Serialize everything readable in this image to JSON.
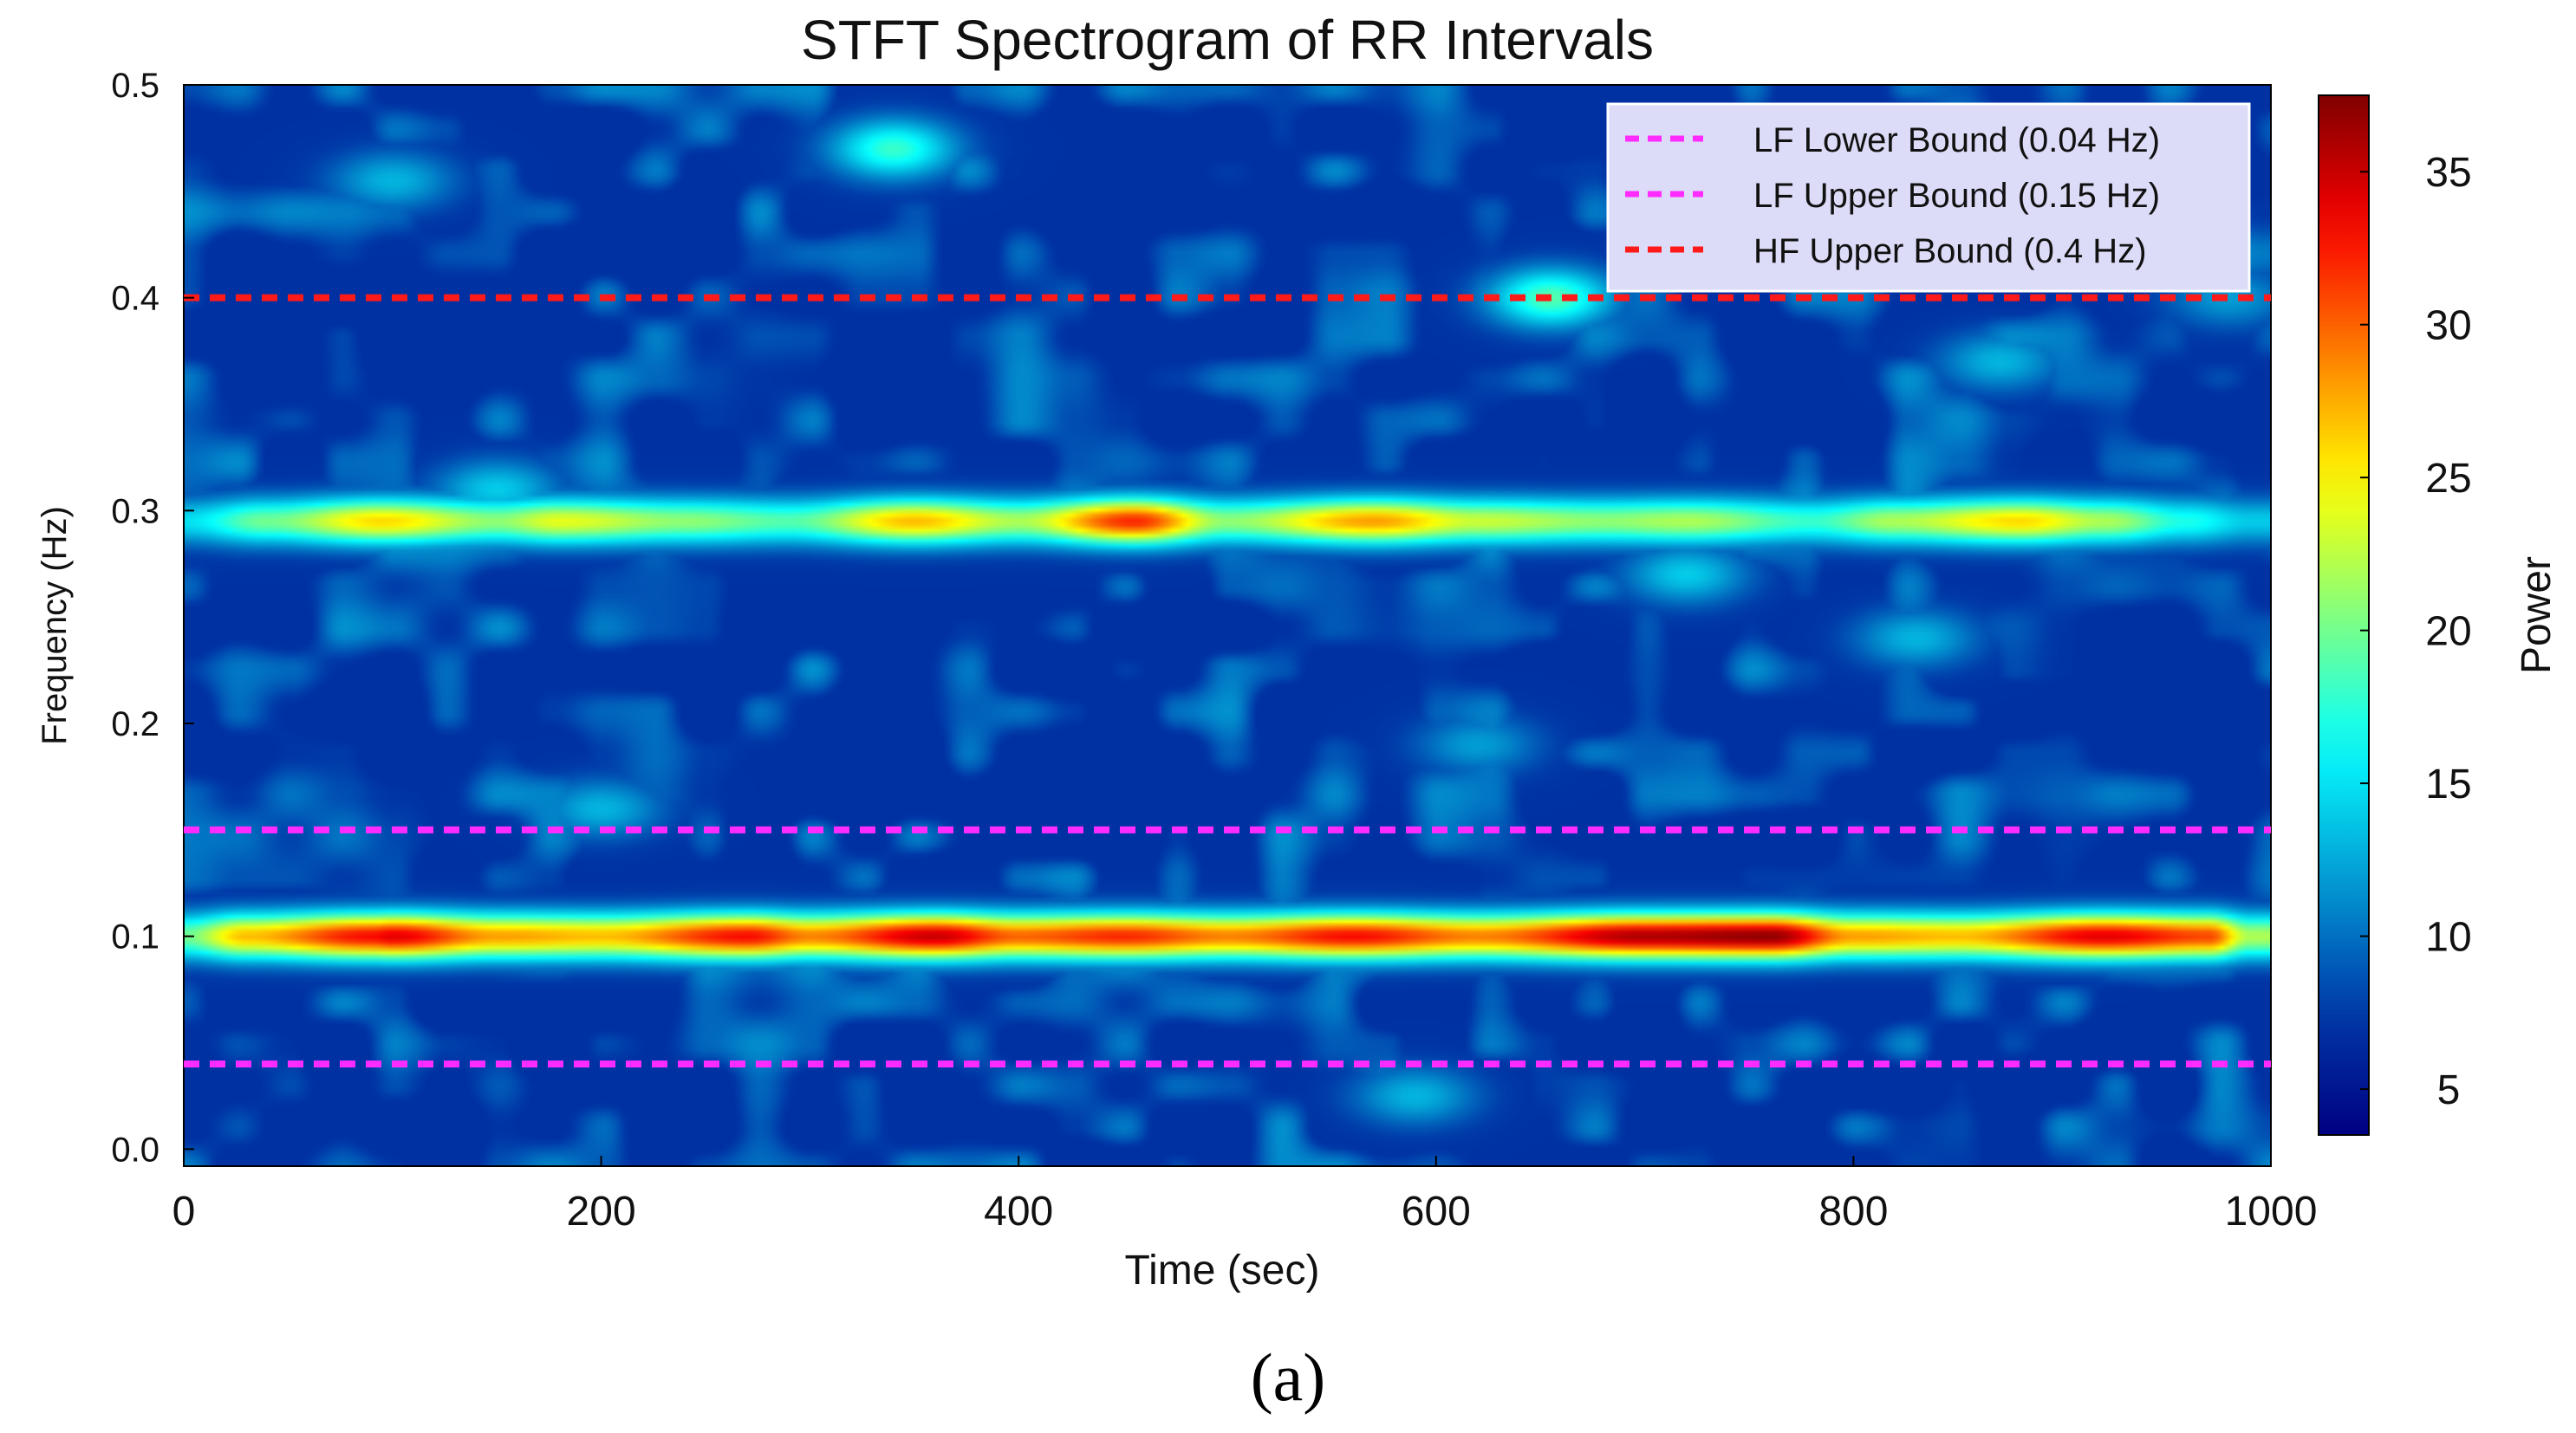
{
  "caption": "(a)",
  "chart_data": {
    "type": "heatmap",
    "title": "STFT Spectrogram of RR Intervals",
    "xlabel": "Time (sec)",
    "ylabel": "Frequency (Hz)",
    "xlim": [
      0,
      1000
    ],
    "ylim": [
      -0.008,
      0.5
    ],
    "x_ticks": [
      0,
      200,
      400,
      600,
      800,
      1000
    ],
    "x_tick_labels": [
      "0",
      "200",
      "400",
      "600",
      "800",
      "1000"
    ],
    "y_ticks": [
      0.0,
      0.1,
      0.2,
      0.3,
      0.4,
      0.5
    ],
    "y_tick_labels": [
      "0.0",
      "0.1",
      "0.2",
      "0.3",
      "0.4",
      "0.5"
    ],
    "grid": false,
    "colormap": "jet",
    "colorbar": {
      "label": "Power",
      "range": [
        3.5,
        37.5
      ],
      "ticks": [
        5,
        10,
        15,
        20,
        25,
        30,
        35
      ],
      "tick_labels": [
        "5",
        "10",
        "15",
        "20",
        "25",
        "30",
        "35"
      ]
    },
    "background_power": 7,
    "bands": [
      {
        "frequency": 0.1,
        "points": [
          {
            "time": 0,
            "power": 20
          },
          {
            "time": 30,
            "power": 27
          },
          {
            "time": 90,
            "power": 33
          },
          {
            "time": 100,
            "power": 34
          },
          {
            "time": 150,
            "power": 28
          },
          {
            "time": 200,
            "power": 27
          },
          {
            "time": 270,
            "power": 33
          },
          {
            "time": 300,
            "power": 29
          },
          {
            "time": 360,
            "power": 35
          },
          {
            "time": 400,
            "power": 30
          },
          {
            "time": 450,
            "power": 32
          },
          {
            "time": 500,
            "power": 29
          },
          {
            "time": 560,
            "power": 33
          },
          {
            "time": 620,
            "power": 29
          },
          {
            "time": 700,
            "power": 36
          },
          {
            "time": 760,
            "power": 37
          },
          {
            "time": 800,
            "power": 28
          },
          {
            "time": 850,
            "power": 27
          },
          {
            "time": 920,
            "power": 34
          },
          {
            "time": 970,
            "power": 31
          },
          {
            "time": 990,
            "power": 22
          }
        ]
      },
      {
        "frequency": 0.295,
        "points": [
          {
            "time": 0,
            "power": 15
          },
          {
            "time": 40,
            "power": 20
          },
          {
            "time": 95,
            "power": 26
          },
          {
            "time": 150,
            "power": 21
          },
          {
            "time": 180,
            "power": 24
          },
          {
            "time": 240,
            "power": 21
          },
          {
            "time": 290,
            "power": 19
          },
          {
            "time": 350,
            "power": 27
          },
          {
            "time": 400,
            "power": 22
          },
          {
            "time": 455,
            "power": 32
          },
          {
            "time": 500,
            "power": 21
          },
          {
            "time": 570,
            "power": 28
          },
          {
            "time": 620,
            "power": 23
          },
          {
            "time": 680,
            "power": 21
          },
          {
            "time": 720,
            "power": 22
          },
          {
            "time": 780,
            "power": 18
          },
          {
            "time": 820,
            "power": 22
          },
          {
            "time": 880,
            "power": 26
          },
          {
            "time": 920,
            "power": 22
          },
          {
            "time": 960,
            "power": 17
          },
          {
            "time": 990,
            "power": 14
          }
        ]
      }
    ],
    "blobs": [
      {
        "time": 340,
        "frequency": 0.47,
        "power": 18
      },
      {
        "time": 655,
        "frequency": 0.4,
        "power": 19
      },
      {
        "time": 100,
        "frequency": 0.455,
        "power": 13
      },
      {
        "time": 150,
        "frequency": 0.31,
        "power": 14
      },
      {
        "time": 720,
        "frequency": 0.27,
        "power": 14
      },
      {
        "time": 830,
        "frequency": 0.24,
        "power": 13
      },
      {
        "time": 870,
        "frequency": 0.37,
        "power": 13
      },
      {
        "time": 980,
        "frequency": 0.4,
        "power": 12
      },
      {
        "time": 590,
        "frequency": 0.025,
        "power": 13
      },
      {
        "time": 620,
        "frequency": 0.19,
        "power": 12
      },
      {
        "time": 200,
        "frequency": 0.16,
        "power": 13
      }
    ],
    "reference_lines": [
      {
        "label": "LF Lower Bound (0.04 Hz)",
        "frequency": 0.04,
        "color": "#ff2bff",
        "style": "dashed"
      },
      {
        "label": "LF Upper Bound (0.15 Hz)",
        "frequency": 0.15,
        "color": "#ff2bff",
        "style": "dashed"
      },
      {
        "label": "HF Upper Bound (0.4 Hz)",
        "frequency": 0.4,
        "color": "#ff1a1a",
        "style": "dashed"
      }
    ],
    "legend": {
      "position": "top-right"
    }
  }
}
